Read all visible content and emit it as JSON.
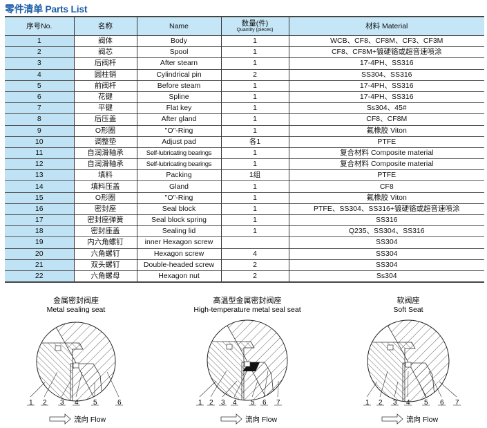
{
  "title": "零件清单 Parts List",
  "table": {
    "headers": {
      "no": "序号No.",
      "cn_name": "名称",
      "name": "Name",
      "qty": "数量(件)",
      "qty_sub": "Quantity (pieces)",
      "material": "材料 Material"
    },
    "rows": [
      {
        "no": "1",
        "cn": "阀体",
        "name": "Body",
        "qty": "1",
        "material": "WCB、CF8、CF8M、CF3、CF3M"
      },
      {
        "no": "2",
        "cn": "阀芯",
        "name": "Spool",
        "qty": "1",
        "material": "CF8、CF8M+镀硬铬或超音速喷涂"
      },
      {
        "no": "3",
        "cn": "后阀杆",
        "name": "After stearn",
        "qty": "1",
        "material": "17-4PH、SS316"
      },
      {
        "no": "4",
        "cn": "圆柱销",
        "name": "Cylindrical pin",
        "qty": "2",
        "material": "SS304、SS316"
      },
      {
        "no": "5",
        "cn": "前阀杆",
        "name": "Before steam",
        "qty": "1",
        "material": "17-4PH、SS316"
      },
      {
        "no": "6",
        "cn": "花键",
        "name": "Spline",
        "qty": "1",
        "material": "17-4PH、SS316"
      },
      {
        "no": "7",
        "cn": "平键",
        "name": "Flat key",
        "qty": "1",
        "material": "Ss304、45#"
      },
      {
        "no": "8",
        "cn": "后压盖",
        "name": "After gland",
        "qty": "1",
        "material": "CF8、CF8M"
      },
      {
        "no": "9",
        "cn": "O形圈",
        "name": "\"O\"-Ring",
        "qty": "1",
        "material": "氟橡胶 Viton"
      },
      {
        "no": "10",
        "cn": "调整垫",
        "name": "Adjust pad",
        "qty": "各1",
        "material": "PTFE"
      },
      {
        "no": "11",
        "cn": "自润滑轴承",
        "name": "Self-lubricating bearings",
        "qty": "1",
        "material": "复合材料 Composite material"
      },
      {
        "no": "12",
        "cn": "自润滑轴承",
        "name": "Self-lubricating bearings",
        "qty": "1",
        "material": "复合材料 Composite material"
      },
      {
        "no": "13",
        "cn": "填料",
        "name": "Packing",
        "qty": "1组",
        "material": "PTFE"
      },
      {
        "no": "14",
        "cn": "填料压盖",
        "name": "Gland",
        "qty": "1",
        "material": "CF8"
      },
      {
        "no": "15",
        "cn": "O形圈",
        "name": "\"O\"-Ring",
        "qty": "1",
        "material": "氟橡胶 Viton"
      },
      {
        "no": "16",
        "cn": "密封座",
        "name": "Seal block",
        "qty": "1",
        "material": "PTFE、SS304、SS316+镀硬铬或超音速喷涂"
      },
      {
        "no": "17",
        "cn": "密封座弹簧",
        "name": "Seal block  spring",
        "qty": "1",
        "material": "SS316"
      },
      {
        "no": "18",
        "cn": "密封座盖",
        "name": "Sealing lid",
        "qty": "1",
        "material": "Q235、SS304、SS316"
      },
      {
        "no": "19",
        "cn": "内六角螺钉",
        "name": "inner Hexagon screw",
        "qty": "",
        "material": "SS304"
      },
      {
        "no": "20",
        "cn": "六角螺钉",
        "name": "Hexagon screw",
        "qty": "4",
        "material": "SS304"
      },
      {
        "no": "21",
        "cn": "双头螺钉",
        "name": "Double-headed screw",
        "qty": "2",
        "material": "SS304"
      },
      {
        "no": "22",
        "cn": "六角螺母",
        "name": "Hexagon nut",
        "qty": "2",
        "material": "Ss304"
      }
    ]
  },
  "diagrams": [
    {
      "title_cn": "金属密封阀座",
      "title_en": "Metal sealing seat",
      "labels": [
        "1",
        "2",
        "3",
        "4",
        "5",
        "6"
      ],
      "flow": "流向 Flow"
    },
    {
      "title_cn": "高温型金属密封阀座",
      "title_en": "High-temperature metal seal seat",
      "labels": [
        "1",
        "2",
        "3",
        "4",
        "5",
        "6",
        "7"
      ],
      "flow": "流向 Flow"
    },
    {
      "title_cn": "软阀座",
      "title_en": "Soft Seat",
      "labels": [
        "1",
        "2",
        "3",
        "4",
        "5",
        "6",
        "7"
      ],
      "flow": "流向 Flow"
    }
  ],
  "colors": {
    "header_bg": "#c4e6f6",
    "no_col_bg": "#bfe3f5",
    "title": "#1d5fa8"
  }
}
